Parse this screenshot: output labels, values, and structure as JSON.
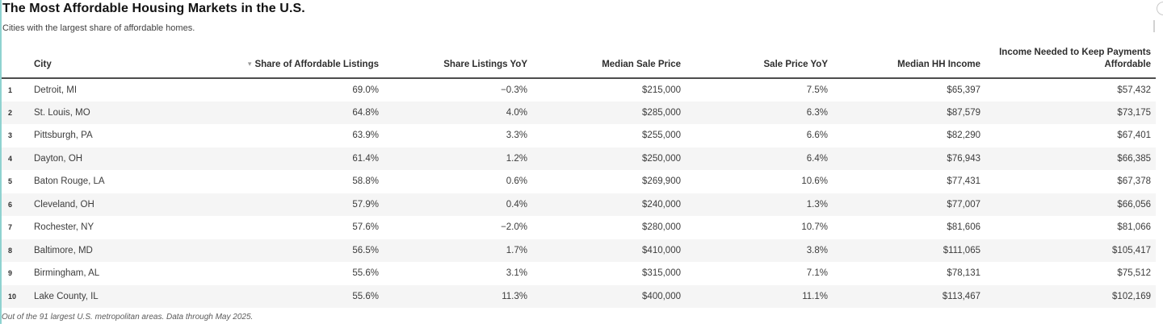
{
  "chart_data": {
    "type": "table",
    "title": "The Most Affordable Housing Markets in the U.S.",
    "subtitle": "Cities with the largest share of affordable homes.",
    "sort": {
      "column": "Share of Affordable Listings",
      "direction": "desc",
      "icon": "▾"
    },
    "columns": [
      {
        "key": "rank",
        "label": "",
        "align": "left"
      },
      {
        "key": "city",
        "label": "City",
        "align": "left"
      },
      {
        "key": "share_affordable",
        "label": "Share of Affordable Listings",
        "align": "right"
      },
      {
        "key": "share_yoy",
        "label": "Share Listings YoY",
        "align": "right"
      },
      {
        "key": "median_sale",
        "label": "Median Sale Price",
        "align": "right"
      },
      {
        "key": "sale_yoy",
        "label": "Sale Price YoY",
        "align": "right"
      },
      {
        "key": "median_hh",
        "label": "Median HH Income",
        "align": "right"
      },
      {
        "key": "income_needed",
        "label": "Income Needed to Keep Payments Affordable",
        "align": "right"
      }
    ],
    "rows": [
      {
        "rank": "1",
        "city": "Detroit, MI",
        "share_affordable": "69.0%",
        "share_yoy": "−0.3%",
        "median_sale": "$215,000",
        "sale_yoy": "7.5%",
        "median_hh": "$65,397",
        "income_needed": "$57,432"
      },
      {
        "rank": "2",
        "city": "St. Louis, MO",
        "share_affordable": "64.8%",
        "share_yoy": "4.0%",
        "median_sale": "$285,000",
        "sale_yoy": "6.3%",
        "median_hh": "$87,579",
        "income_needed": "$73,175"
      },
      {
        "rank": "3",
        "city": "Pittsburgh, PA",
        "share_affordable": "63.9%",
        "share_yoy": "3.3%",
        "median_sale": "$255,000",
        "sale_yoy": "6.6%",
        "median_hh": "$82,290",
        "income_needed": "$67,401"
      },
      {
        "rank": "4",
        "city": "Dayton, OH",
        "share_affordable": "61.4%",
        "share_yoy": "1.2%",
        "median_sale": "$250,000",
        "sale_yoy": "6.4%",
        "median_hh": "$76,943",
        "income_needed": "$66,385"
      },
      {
        "rank": "5",
        "city": "Baton Rouge, LA",
        "share_affordable": "58.8%",
        "share_yoy": "0.6%",
        "median_sale": "$269,900",
        "sale_yoy": "10.6%",
        "median_hh": "$77,431",
        "income_needed": "$67,378"
      },
      {
        "rank": "6",
        "city": "Cleveland, OH",
        "share_affordable": "57.9%",
        "share_yoy": "0.4%",
        "median_sale": "$240,000",
        "sale_yoy": "1.3%",
        "median_hh": "$77,007",
        "income_needed": "$66,056"
      },
      {
        "rank": "7",
        "city": "Rochester, NY",
        "share_affordable": "57.6%",
        "share_yoy": "−2.0%",
        "median_sale": "$280,000",
        "sale_yoy": "10.7%",
        "median_hh": "$81,606",
        "income_needed": "$81,066"
      },
      {
        "rank": "8",
        "city": "Baltimore, MD",
        "share_affordable": "56.5%",
        "share_yoy": "1.7%",
        "median_sale": "$410,000",
        "sale_yoy": "3.8%",
        "median_hh": "$111,065",
        "income_needed": "$105,417"
      },
      {
        "rank": "9",
        "city": "Birmingham, AL",
        "share_affordable": "55.6%",
        "share_yoy": "3.1%",
        "median_sale": "$315,000",
        "sale_yoy": "7.1%",
        "median_hh": "$78,131",
        "income_needed": "$75,512"
      },
      {
        "rank": "10",
        "city": "Lake County, IL",
        "share_affordable": "55.6%",
        "share_yoy": "11.3%",
        "median_sale": "$400,000",
        "sale_yoy": "11.1%",
        "median_hh": "$113,467",
        "income_needed": "$102,169"
      }
    ],
    "footnote": "Out of the 91 largest U.S. metropolitan areas. Data through May 2025."
  },
  "colors": {
    "accent_line": "#8fd2d0",
    "row_alt": "#f5f5f5",
    "header_rule": "#4d4d4d"
  }
}
